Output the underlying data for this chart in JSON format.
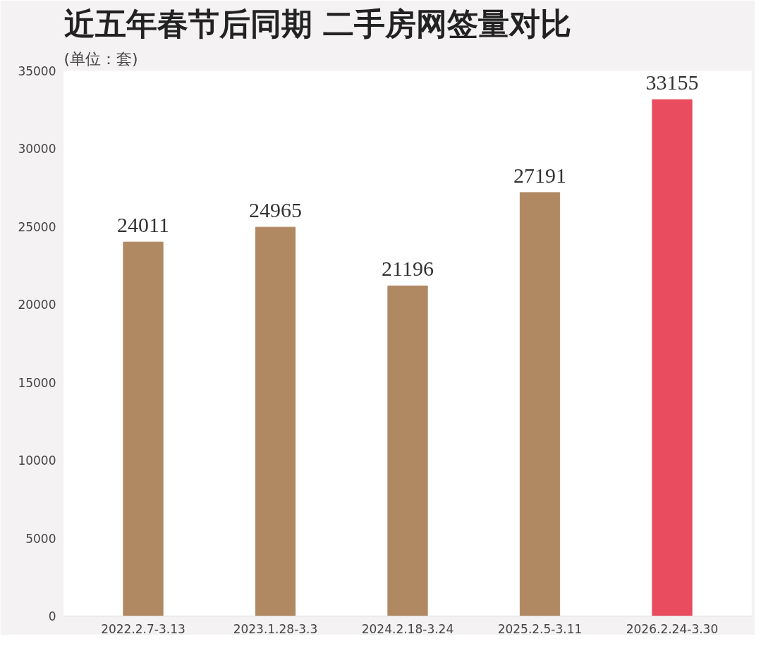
{
  "chart_data": {
    "type": "bar",
    "title": "近五年春节后同期 二手房网签量对比",
    "subtitle": "(单位：套)",
    "categories": [
      "2022.2.7-3.13",
      "2023.1.28-3.3",
      "2024.2.18-3.24",
      "2025.2.5-3.11",
      "2026.2.24-3.30"
    ],
    "values": [
      24011,
      24965,
      21196,
      27191,
      33155
    ],
    "colors": [
      "#b08862",
      "#b08862",
      "#b08862",
      "#b08862",
      "#e84c5e"
    ],
    "ylim": [
      0,
      35000
    ],
    "yticks": [
      0,
      5000,
      10000,
      15000,
      20000,
      25000,
      30000,
      35000
    ],
    "data_labels": true,
    "grid": false
  }
}
